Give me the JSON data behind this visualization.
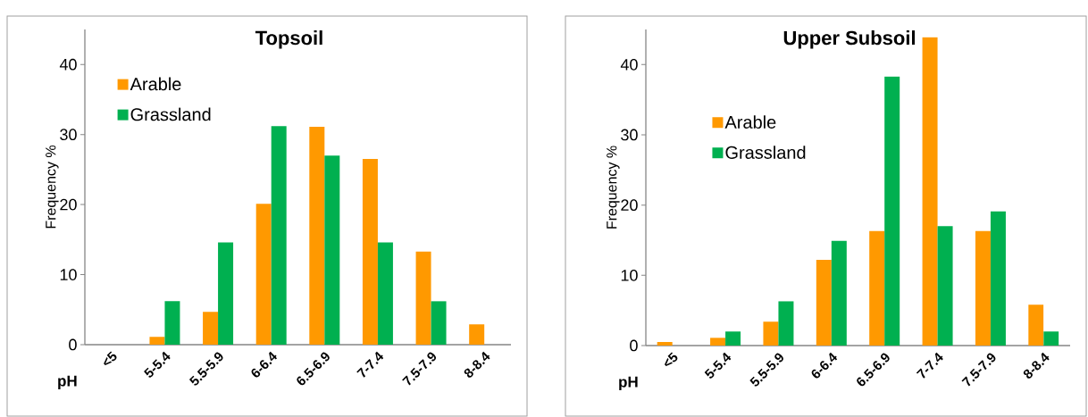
{
  "chart_data": [
    {
      "type": "bar",
      "title": "Topsoil",
      "xlabel": "pH",
      "ylabel": "Frequency %",
      "categories": [
        "<5",
        "5-5.4",
        "5.5-5.9",
        "6-6.4",
        "6.5-6.9",
        "7-7.4",
        "7.5-7.9",
        "8-8.4"
      ],
      "series": [
        {
          "name": "Arable",
          "color": "#ff9900",
          "values": [
            0,
            1.1,
            4.7,
            20.1,
            31.1,
            26.5,
            13.3,
            2.9
          ]
        },
        {
          "name": "Grassland",
          "color": "#00b050",
          "values": [
            0,
            6.2,
            14.6,
            31.2,
            27.0,
            14.6,
            6.2,
            0
          ]
        }
      ],
      "ylim": [
        0,
        45
      ],
      "yticks": [
        0,
        10,
        20,
        30,
        40
      ],
      "legend": "top left"
    },
    {
      "type": "bar",
      "title": "Upper Subsoil",
      "xlabel": "pH",
      "ylabel": "Frequency %",
      "categories": [
        "<5",
        "5-5.4",
        "5.5-5.9",
        "6-6.4",
        "6.5-6.9",
        "7-7.4",
        "7.5-7.9",
        "8-8.4"
      ],
      "series": [
        {
          "name": "Arable",
          "color": "#ff9900",
          "values": [
            0.5,
            1.1,
            3.4,
            12.2,
            16.3,
            43.9,
            16.3,
            5.8
          ]
        },
        {
          "name": "Grassland",
          "color": "#00b050",
          "values": [
            0,
            2.0,
            6.3,
            14.9,
            38.3,
            17.0,
            19.1,
            2.0
          ]
        }
      ],
      "ylim": [
        0,
        45
      ],
      "yticks": [
        0,
        10,
        20,
        30,
        40
      ],
      "legend": "top left"
    }
  ]
}
